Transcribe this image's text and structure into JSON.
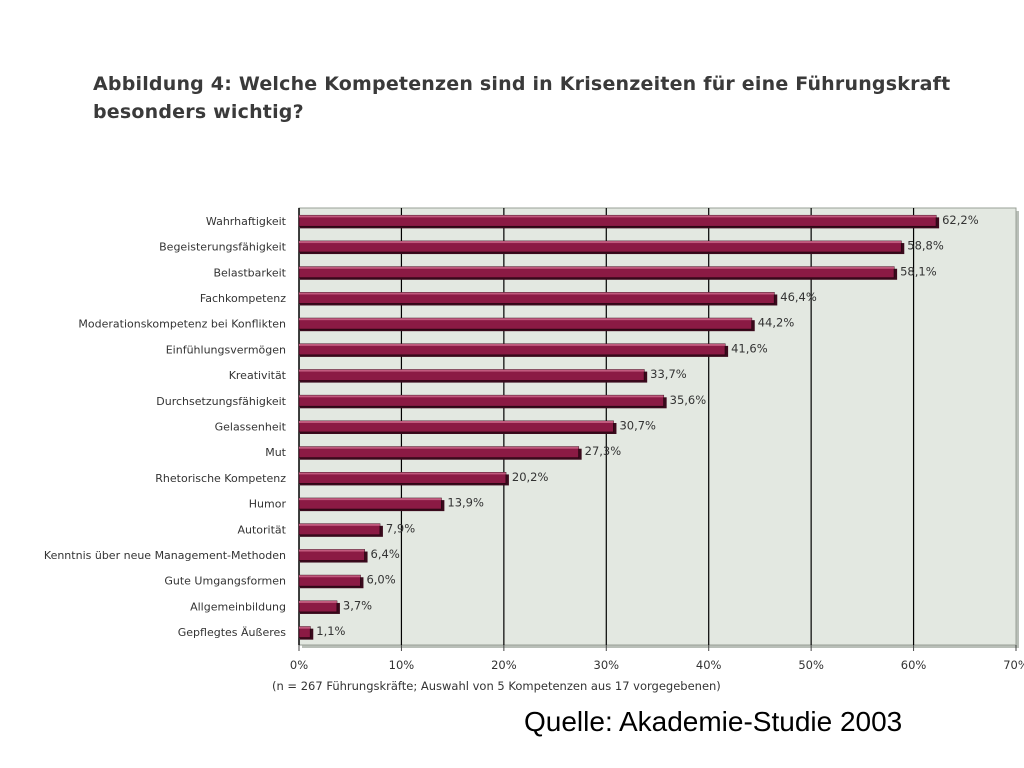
{
  "slide": {
    "source": "Quelle: Akademie-Studie 2003"
  },
  "chart_data": {
    "type": "bar",
    "orientation": "horizontal",
    "title": "Abbildung 4:  Welche Kompetenzen sind in Krisenzeiten für eine Führungskraft besonders wichtig?",
    "xlabel": "(n = 267 Führungskräfte; Auswahl von 5 Kompetenzen aus 17 vorgegebenen)",
    "ylabel": "",
    "xlim": [
      0,
      70
    ],
    "x_ticks": [
      "0%",
      "10%",
      "20%",
      "30%",
      "40%",
      "50%",
      "60%",
      "70%"
    ],
    "grid": true,
    "bar_color": "#8b1a44",
    "plot_background": "#e3e8e1",
    "categories": [
      "Wahrhaftigkeit",
      "Begeisterungsfähigkeit",
      "Belastbarkeit",
      "Fachkompetenz",
      "Moderationskompetenz bei Konflikten",
      "Einfühlungsvermögen",
      "Kreativität",
      "Durchsetzungsfähigkeit",
      "Gelassenheit",
      "Mut",
      "Rhetorische Kompetenz",
      "Humor",
      "Autorität",
      "Kenntnis über neue Management-Methoden",
      "Gute Umgangsformen",
      "Allgemeinbildung",
      "Gepflegtes Äußeres"
    ],
    "values": [
      62.2,
      58.8,
      58.1,
      46.4,
      44.2,
      41.6,
      33.7,
      35.6,
      30.7,
      27.3,
      20.2,
      13.9,
      7.9,
      6.4,
      6.0,
      3.7,
      1.1
    ],
    "value_labels": [
      "62,2%",
      "58,8%",
      "58,1%",
      "46,4%",
      "44,2%",
      "41,6%",
      "33,7%",
      "35,6%",
      "30,7%",
      "27,3%",
      "20,2%",
      "13,9%",
      "7,9%",
      "6,4%",
      "6,0%",
      "3,7%",
      "1,1%"
    ]
  }
}
